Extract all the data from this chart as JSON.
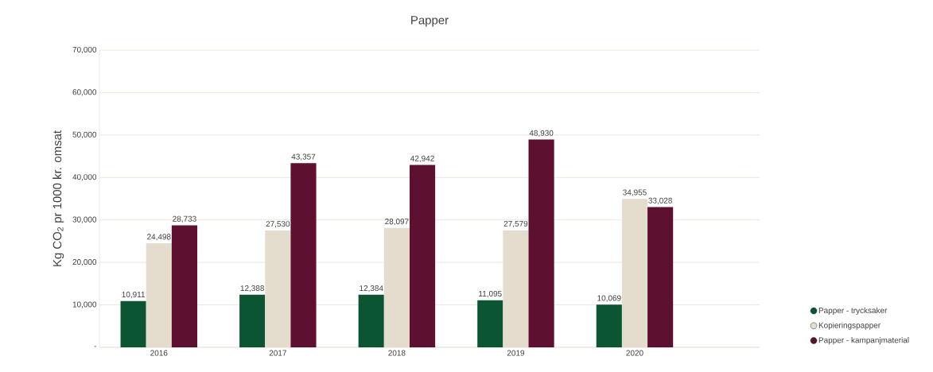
{
  "chart_data": {
    "type": "bar",
    "title": "Papper",
    "ylabel": "Kg CO$_{2}$ pr 1000 kr. omsat",
    "categories": [
      "2016",
      "2017",
      "2018",
      "2019",
      "2020"
    ],
    "series": [
      {
        "name": "Papper - trycksaker",
        "color": "#0b5533",
        "values": [
          10911,
          12388,
          12384,
          11095,
          10069
        ],
        "value_labels": [
          "10,911",
          "12,388",
          "12,384",
          "11,095",
          "10,069"
        ]
      },
      {
        "name": "Kopieringspapper",
        "color": "#e4dccd",
        "values": [
          24498,
          27530,
          28097,
          27579,
          34955
        ],
        "value_labels": [
          "24,498",
          "27,530",
          "28,097",
          "27,579",
          "34,955"
        ]
      },
      {
        "name": "Papper - kampanjmaterial",
        "color": "#5e1030",
        "values": [
          28733,
          43357,
          42942,
          48930,
          33028
        ],
        "value_labels": [
          "28,733",
          "43,357",
          "42,942",
          "48,930",
          "33,028"
        ]
      }
    ],
    "ylim": [
      0,
      70000
    ],
    "yticks": [
      {
        "value": 0,
        "label": "-"
      },
      {
        "value": 10000,
        "label": "10,000"
      },
      {
        "value": 20000,
        "label": "20,000"
      },
      {
        "value": 30000,
        "label": "30,000"
      },
      {
        "value": 40000,
        "label": "40,000"
      },
      {
        "value": 50000,
        "label": "50,000"
      },
      {
        "value": 60000,
        "label": "60,000"
      },
      {
        "value": 70000,
        "label": "70,000"
      }
    ],
    "grid": "y",
    "legend": "bottom right",
    "marker": "circle"
  }
}
